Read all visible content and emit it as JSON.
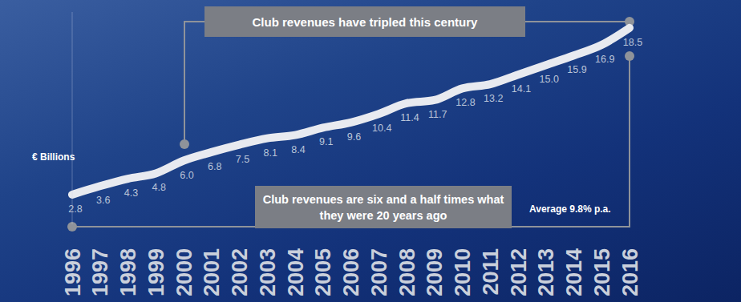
{
  "chart_data": {
    "type": "line",
    "ylabel": "€ Billions",
    "categories": [
      "1996",
      "1997",
      "1998",
      "1999",
      "2000",
      "2001",
      "2002",
      "2003",
      "2004",
      "2005",
      "2006",
      "2007",
      "2008",
      "2009",
      "2010",
      "2011",
      "2012",
      "2013",
      "2014",
      "2015",
      "2016"
    ],
    "values": [
      2.8,
      3.6,
      4.3,
      4.8,
      6.0,
      6.8,
      7.5,
      8.1,
      8.4,
      9.1,
      9.6,
      10.4,
      11.4,
      11.7,
      12.8,
      13.2,
      14.1,
      15.0,
      15.9,
      16.9,
      18.5
    ],
    "value_labels": [
      "2.8",
      "3.6",
      "4.3",
      "4.8",
      "6.0",
      "6.8",
      "7.5",
      "8.1",
      "8.4",
      "9.1",
      "9.6",
      "10.4",
      "11.4",
      "11.7",
      "12.8",
      "13.2",
      "14.1",
      "15.0",
      "15.9",
      "16.9",
      "18.5"
    ],
    "annotations": [
      "Club revenues have tripled this century",
      "Club revenues are six and a half times what they were 20 years ago",
      "Average 9.8% p.a."
    ],
    "ylim": [
      0,
      20
    ],
    "color": "#e8eaf0",
    "data_labels": true,
    "tick_labels": "x",
    "grid": false
  }
}
